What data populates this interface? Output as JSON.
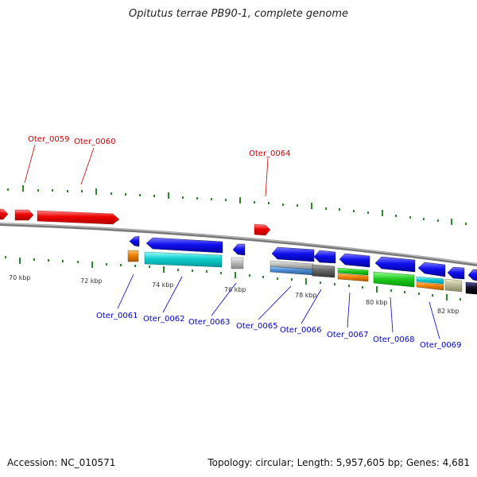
{
  "title": "Opitutus terrae PB90-1, complete genome",
  "footer": {
    "accession": "Accession: NC_010571",
    "stats": "Topology: circular; Length: 5,957,605 bp; Genes: 4,681"
  },
  "kbp_labels": [
    "70 kbp",
    "72 kbp",
    "74 kbp",
    "76 kbp",
    "78 kbp",
    "80 kbp",
    "82 kbp"
  ],
  "gene_labels_forward": [
    "Oter_0059",
    "Oter_0060",
    "Oter_0064"
  ],
  "gene_labels_reverse": [
    "Oter_0061",
    "Oter_0062",
    "Oter_0063",
    "Oter_0065",
    "Oter_0066",
    "Oter_0067",
    "Oter_0068",
    "Oter_0069"
  ],
  "colors": {
    "forward_gene": "#ff0000",
    "reverse_gene": "#0000ff",
    "backbone": "#888888",
    "tick": "#2a8a2a",
    "label_red": "#cc0000",
    "label_blue": "#0000cc"
  }
}
